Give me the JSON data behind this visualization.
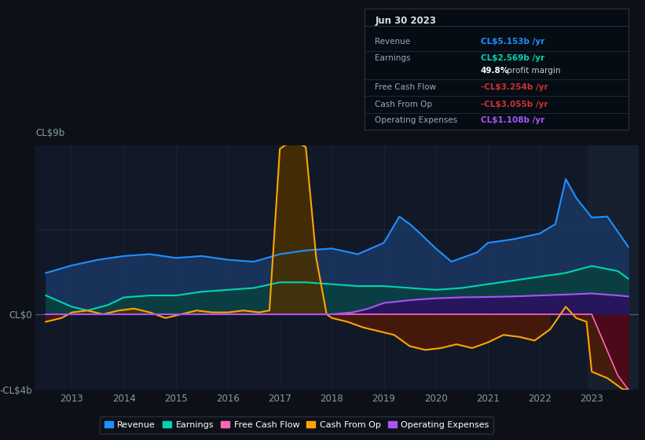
{
  "background_color": "#0d1117",
  "plot_bg_color": "#111827",
  "ylim": [
    -4,
    9
  ],
  "xlim": [
    2012.3,
    2023.9
  ],
  "series": {
    "Revenue": {
      "color": "#1e90ff",
      "fill_color": "#1a3560",
      "data_x": [
        2012.5,
        2013.0,
        2013.5,
        2014.0,
        2014.5,
        2015.0,
        2015.5,
        2016.0,
        2016.5,
        2017.0,
        2017.5,
        2018.0,
        2018.5,
        2019.0,
        2019.3,
        2019.5,
        2019.7,
        2020.0,
        2020.3,
        2020.5,
        2020.8,
        2021.0,
        2021.5,
        2022.0,
        2022.3,
        2022.5,
        2022.7,
        2023.0,
        2023.3,
        2023.7
      ],
      "data_y": [
        2.2,
        2.6,
        2.9,
        3.1,
        3.2,
        3.0,
        3.1,
        2.9,
        2.8,
        3.2,
        3.4,
        3.5,
        3.2,
        3.8,
        5.2,
        4.8,
        4.3,
        3.5,
        2.8,
        3.0,
        3.3,
        3.8,
        4.0,
        4.3,
        4.8,
        7.2,
        6.2,
        5.15,
        5.2,
        3.6
      ]
    },
    "Earnings": {
      "color": "#00d4b0",
      "fill_color": "#0a4040",
      "data_x": [
        2012.5,
        2013.0,
        2013.3,
        2013.7,
        2014.0,
        2014.5,
        2015.0,
        2015.5,
        2016.0,
        2016.5,
        2017.0,
        2017.5,
        2018.0,
        2018.5,
        2019.0,
        2019.5,
        2020.0,
        2020.5,
        2021.0,
        2021.5,
        2022.0,
        2022.5,
        2023.0,
        2023.5,
        2023.7
      ],
      "data_y": [
        1.0,
        0.4,
        0.2,
        0.5,
        0.9,
        1.0,
        1.0,
        1.2,
        1.3,
        1.4,
        1.7,
        1.7,
        1.6,
        1.5,
        1.5,
        1.4,
        1.3,
        1.4,
        1.6,
        1.8,
        2.0,
        2.2,
        2.57,
        2.3,
        1.9
      ]
    },
    "FreeCashFlow": {
      "color": "#ff69b4",
      "fill_color": "#500020",
      "data_x": [
        2012.5,
        2013.0,
        2014.0,
        2015.0,
        2016.0,
        2017.0,
        2017.5,
        2018.0,
        2018.5,
        2019.0,
        2019.5,
        2020.0,
        2020.5,
        2021.0,
        2021.5,
        2022.0,
        2022.5,
        2023.0,
        2023.5,
        2023.7
      ],
      "data_y": [
        0.0,
        0.0,
        0.0,
        0.0,
        0.0,
        0.0,
        0.0,
        0.0,
        0.0,
        0.0,
        0.0,
        0.0,
        0.0,
        0.0,
        0.0,
        0.0,
        0.0,
        0.0,
        -3.254,
        -4.0
      ]
    },
    "CashFromOp": {
      "color": "#ffa500",
      "fill_color": "#3a2000",
      "data_x": [
        2012.5,
        2012.8,
        2013.0,
        2013.3,
        2013.6,
        2013.9,
        2014.2,
        2014.5,
        2014.8,
        2015.1,
        2015.4,
        2015.7,
        2016.0,
        2016.3,
        2016.6,
        2016.8,
        2017.0,
        2017.1,
        2017.2,
        2017.3,
        2017.5,
        2017.7,
        2017.9,
        2018.0,
        2018.3,
        2018.6,
        2018.9,
        2019.2,
        2019.5,
        2019.8,
        2020.1,
        2020.4,
        2020.7,
        2021.0,
        2021.3,
        2021.6,
        2021.9,
        2022.2,
        2022.5,
        2022.7,
        2022.9,
        2023.0,
        2023.3,
        2023.6,
        2023.7
      ],
      "data_y": [
        -0.4,
        -0.2,
        0.1,
        0.2,
        0.0,
        0.2,
        0.3,
        0.1,
        -0.2,
        0.0,
        0.2,
        0.1,
        0.1,
        0.2,
        0.1,
        0.2,
        8.8,
        9.0,
        9.1,
        9.2,
        8.9,
        3.0,
        0.0,
        -0.2,
        -0.4,
        -0.7,
        -0.9,
        -1.1,
        -1.7,
        -1.9,
        -1.8,
        -1.6,
        -1.8,
        -1.5,
        -1.1,
        -1.2,
        -1.4,
        -0.8,
        0.4,
        -0.2,
        -0.4,
        -3.055,
        -3.4,
        -4.0,
        -4.0
      ]
    },
    "OperatingExpenses": {
      "color": "#a855f7",
      "fill_color": "#2d1060",
      "data_x": [
        2012.5,
        2013.0,
        2014.0,
        2015.0,
        2016.0,
        2017.0,
        2018.0,
        2018.4,
        2018.7,
        2019.0,
        2019.5,
        2020.0,
        2020.5,
        2021.0,
        2021.5,
        2022.0,
        2022.5,
        2023.0,
        2023.5,
        2023.7
      ],
      "data_y": [
        0.0,
        0.0,
        0.0,
        0.0,
        0.0,
        0.0,
        0.0,
        0.1,
        0.3,
        0.6,
        0.75,
        0.85,
        0.9,
        0.92,
        0.95,
        1.0,
        1.05,
        1.108,
        1.0,
        0.95
      ]
    }
  },
  "tooltip": {
    "date": "Jun 30 2023",
    "rows": [
      {
        "label": "Revenue",
        "value": "CL$5.153b /yr",
        "value_color": "#1e90ff"
      },
      {
        "label": "Earnings",
        "value": "CL$2.569b /yr",
        "value_color": "#00d4b0"
      },
      {
        "label": "",
        "value": "49.8% profit margin",
        "value_color": "#cccccc",
        "bold_prefix": "49.8%"
      },
      {
        "label": "Free Cash Flow",
        "value": "-CL$3.254b /yr",
        "value_color": "#cc3333"
      },
      {
        "label": "Cash From Op",
        "value": "-CL$3.055b /yr",
        "value_color": "#cc3333"
      },
      {
        "label": "Operating Expenses",
        "value": "CL$1.108b /yr",
        "value_color": "#a855f7"
      }
    ]
  },
  "legend": [
    {
      "label": "Revenue",
      "color": "#1e90ff"
    },
    {
      "label": "Earnings",
      "color": "#00d4b0"
    },
    {
      "label": "Free Cash Flow",
      "color": "#ff69b4"
    },
    {
      "label": "Cash From Op",
      "color": "#ffa500"
    },
    {
      "label": "Operating Expenses",
      "color": "#a855f7"
    }
  ]
}
